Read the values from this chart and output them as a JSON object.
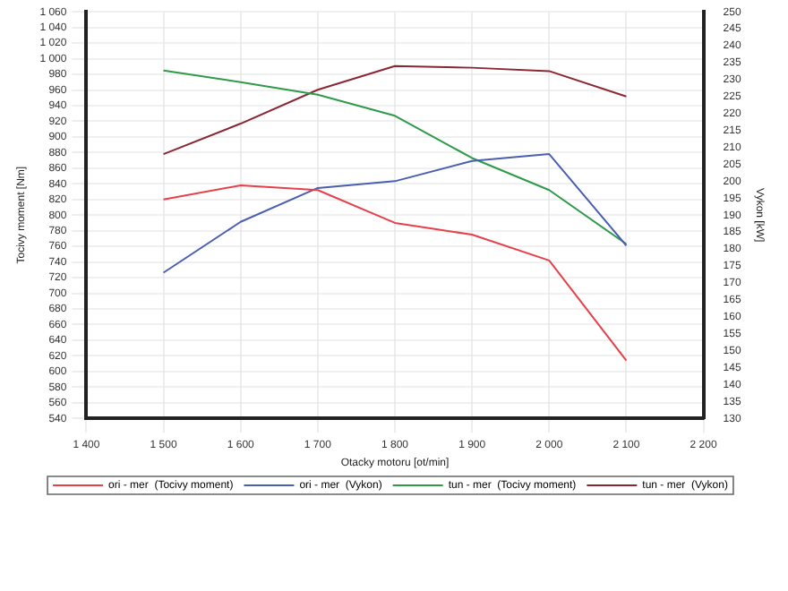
{
  "chart_data": {
    "type": "line",
    "xlabel": "Otacky motoru [ot/min]",
    "ylabel": "Tocivy moment [Nm]",
    "y2label": "Vykon [kW]",
    "x": [
      1500,
      1600,
      1700,
      1800,
      1900,
      2000,
      2100
    ],
    "xlim": [
      1400,
      2200
    ],
    "xticks": [
      {
        "value": 1400,
        "label": "1 400"
      },
      {
        "value": 1500,
        "label": "1 500"
      },
      {
        "value": 1600,
        "label": "1 600"
      },
      {
        "value": 1700,
        "label": "1 700"
      },
      {
        "value": 1800,
        "label": "1 800"
      },
      {
        "value": 1900,
        "label": "1 900"
      },
      {
        "value": 2000,
        "label": "2 000"
      },
      {
        "value": 2100,
        "label": "2 100"
      },
      {
        "value": 2200,
        "label": "2 200"
      }
    ],
    "ylim": [
      540,
      1060
    ],
    "yticks": [
      540,
      560,
      580,
      600,
      620,
      640,
      660,
      680,
      700,
      720,
      740,
      760,
      780,
      800,
      820,
      840,
      860,
      880,
      900,
      920,
      940,
      960,
      980,
      {
        "value": 1000,
        "label": "1 000"
      },
      {
        "value": 1020,
        "label": "1 020"
      },
      {
        "value": 1040,
        "label": "1 040"
      },
      {
        "value": 1060,
        "label": "1 060"
      }
    ],
    "y2lim": [
      130,
      250
    ],
    "y2ticks": [
      130,
      135,
      140,
      145,
      150,
      155,
      160,
      165,
      170,
      175,
      180,
      185,
      190,
      195,
      200,
      205,
      210,
      215,
      220,
      225,
      230,
      235,
      240,
      245,
      250
    ],
    "series": [
      {
        "name": "ori - mer  (Tocivy moment)",
        "color": "#e8404a",
        "values": [
          820,
          838,
          832,
          790,
          775,
          742,
          614
        ]
      },
      {
        "name": "ori - mer  (Vykon)",
        "color": "#4a5fb0",
        "axis": "y2",
        "values": [
          173,
          188,
          198,
          200,
          206,
          208,
          181
        ]
      },
      {
        "name": "tun - mer  (Tocivy moment)",
        "color": "#2e9a4a",
        "values": [
          985,
          970,
          954,
          927,
          873,
          832,
          763
        ]
      },
      {
        "name": "tun - mer  (Vykon)",
        "color": "#8b2635",
        "axis": "y2",
        "values": [
          208,
          217,
          227,
          234,
          233.5,
          232.5,
          225
        ]
      }
    ],
    "grid": true,
    "legend": "bottom",
    "marker": "none",
    "line_style": "solid"
  }
}
